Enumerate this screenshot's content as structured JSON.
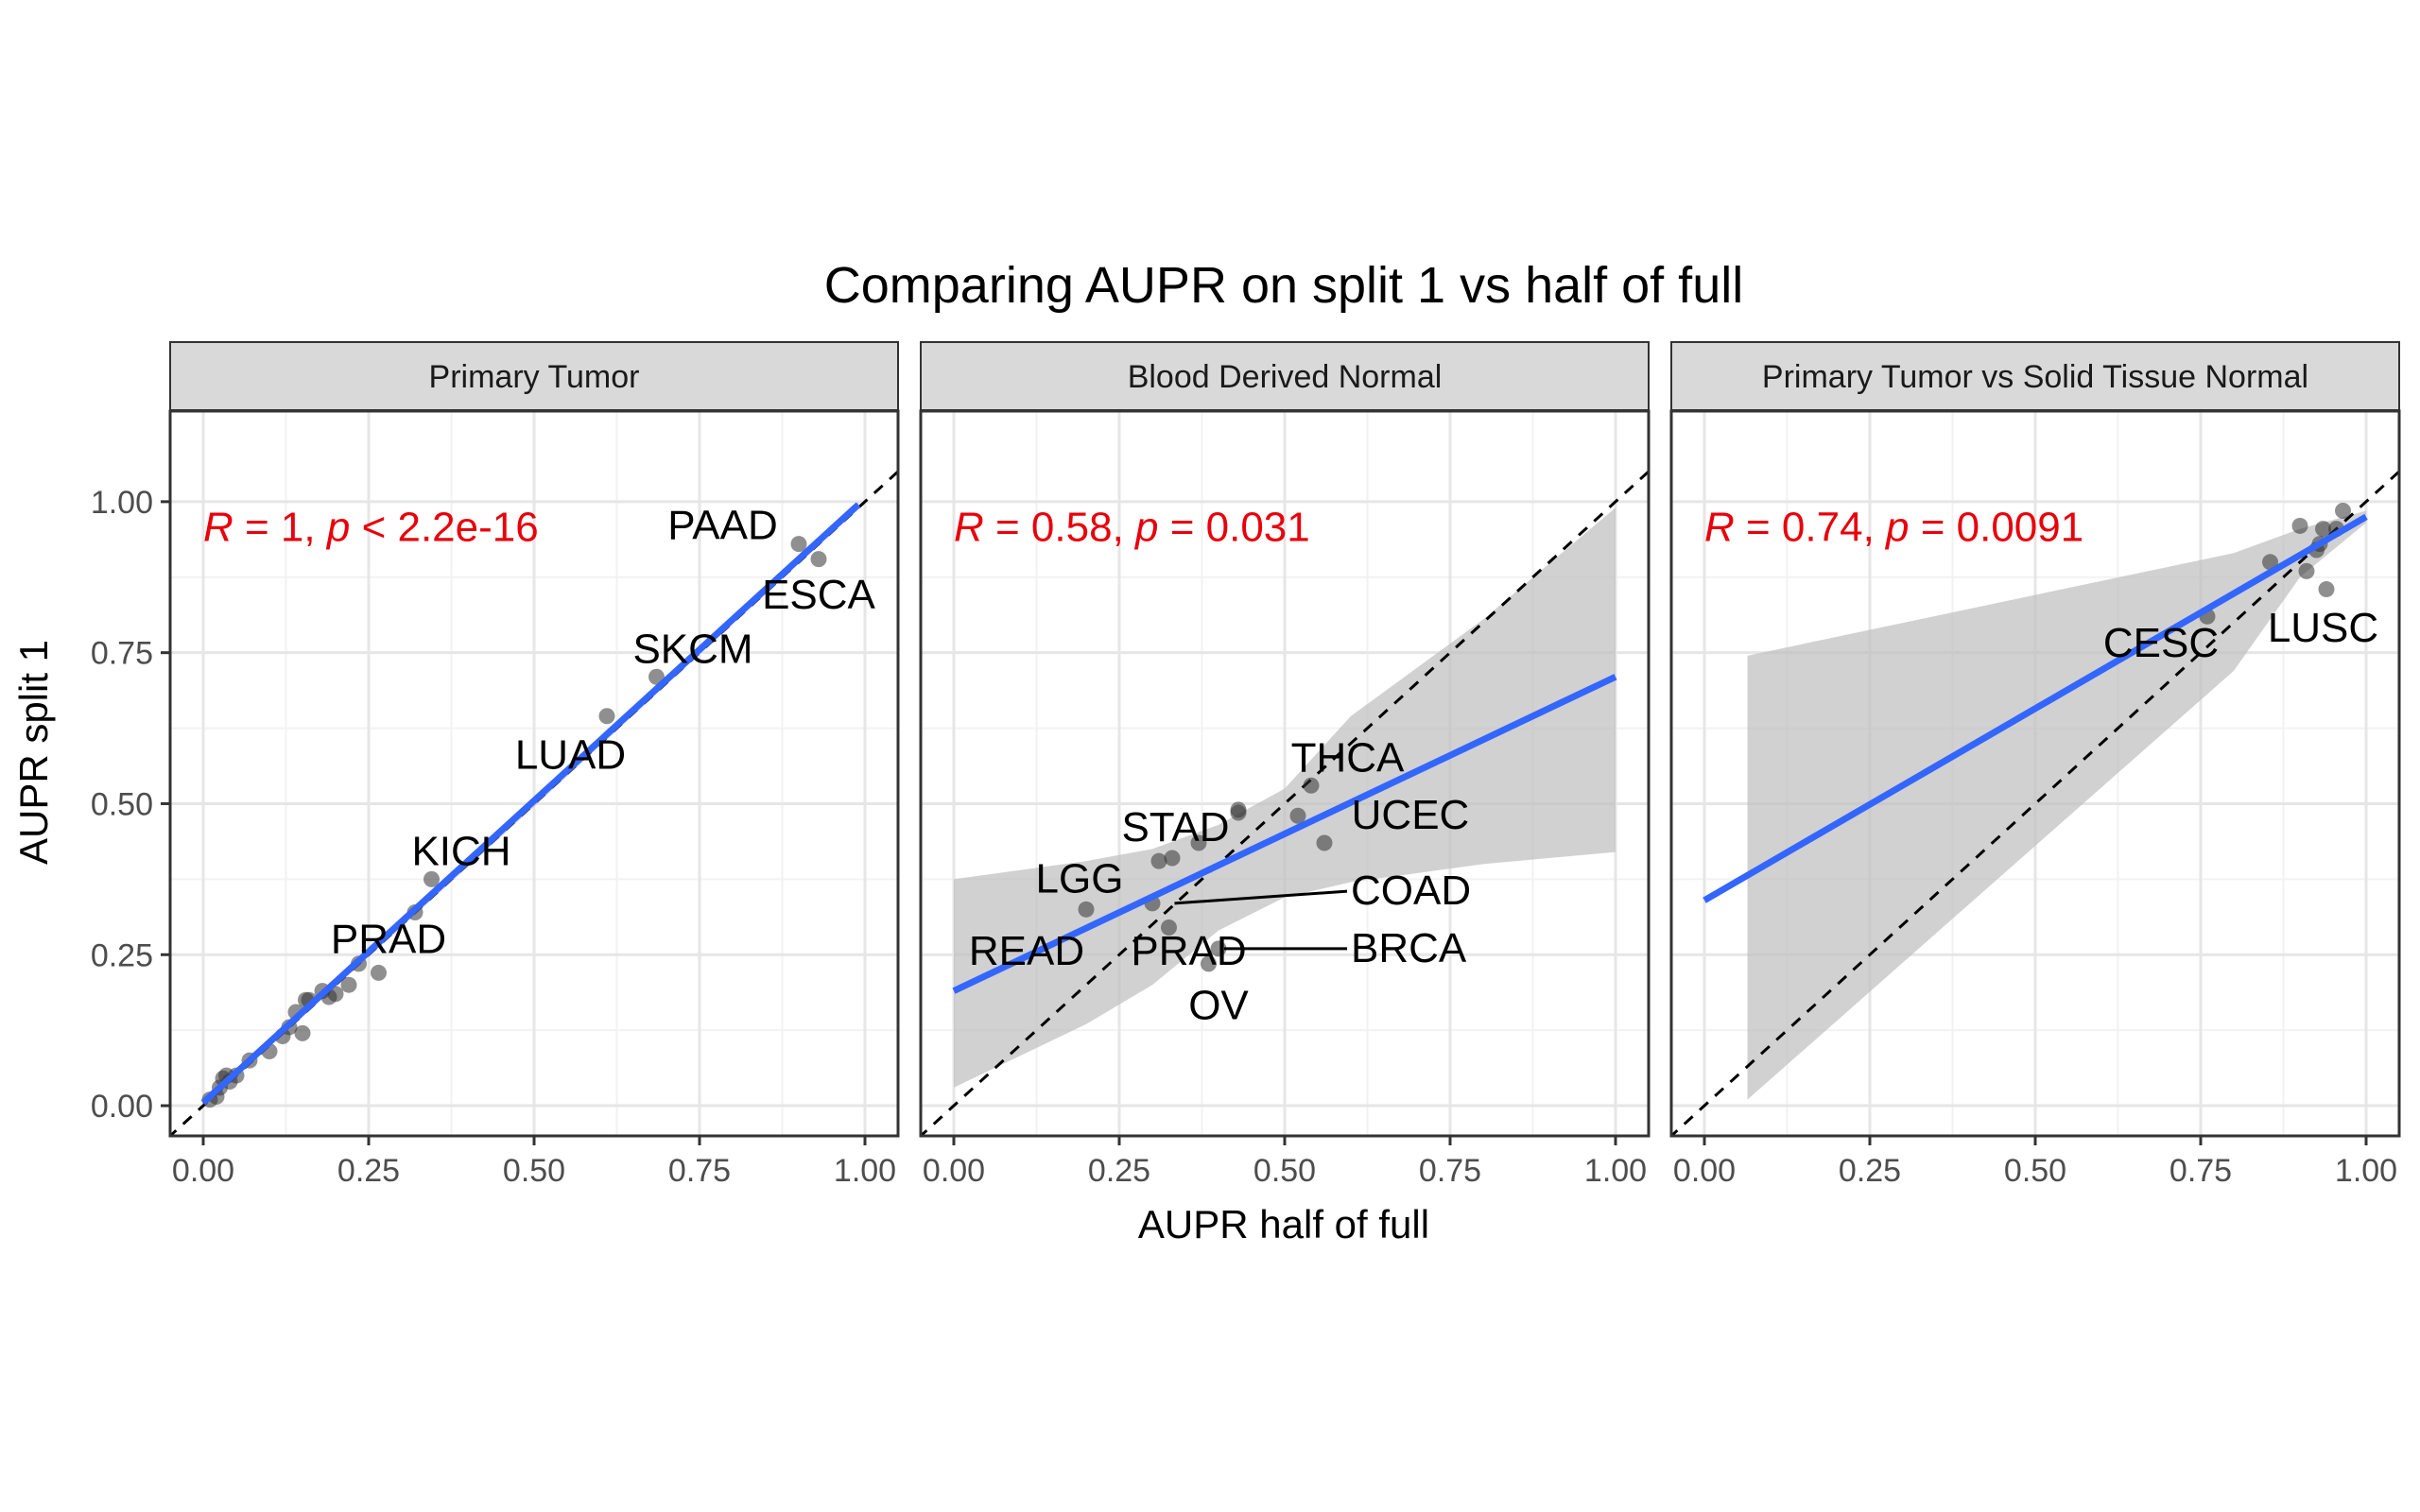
{
  "chart_data": {
    "type": "scatter",
    "title": "Comparing AUPR on split 1 vs half of full",
    "xlabel": "AUPR half of full",
    "ylabel": "AUPR split 1",
    "xlim": [
      -0.05,
      1.05
    ],
    "ylim": [
      -0.05,
      1.15
    ],
    "x_ticks": [
      "0.00",
      "0.25",
      "0.50",
      "0.75",
      "1.00"
    ],
    "y_ticks": [
      "0.00",
      "0.25",
      "0.50",
      "0.75",
      "1.00"
    ],
    "grid": true,
    "colors": {
      "fit_line": "#3366FF",
      "ribbon": "#BEBEBE",
      "point": "#333333",
      "stat_text": "#E8000B",
      "strip_bg": "#D9D9D9",
      "identity_line": "#000000"
    },
    "panels": [
      {
        "strip": "Primary Tumor",
        "stat": {
          "r_label": "R",
          "r_value": "1",
          "p_label": "p",
          "p_value": "< 2.2e-16"
        },
        "fit": {
          "x0": 0.0,
          "y0": 0.005,
          "x1": 0.99,
          "y1": 0.995
        },
        "ribbon_upper": [
          [
            0.0,
            0.012
          ],
          [
            0.5,
            0.505
          ],
          [
            0.99,
            1.0
          ]
        ],
        "ribbon_lower": [
          [
            0.99,
            0.99
          ],
          [
            0.5,
            0.495
          ],
          [
            0.0,
            -0.002
          ]
        ],
        "points": [
          [
            0.01,
            0.01
          ],
          [
            0.02,
            0.015
          ],
          [
            0.025,
            0.03
          ],
          [
            0.03,
            0.045
          ],
          [
            0.035,
            0.05
          ],
          [
            0.04,
            0.04
          ],
          [
            0.05,
            0.05
          ],
          [
            0.07,
            0.075
          ],
          [
            0.1,
            0.09
          ],
          [
            0.12,
            0.115
          ],
          [
            0.13,
            0.13
          ],
          [
            0.14,
            0.155
          ],
          [
            0.15,
            0.12
          ],
          [
            0.155,
            0.175
          ],
          [
            0.16,
            0.175
          ],
          [
            0.18,
            0.19
          ],
          [
            0.19,
            0.18
          ],
          [
            0.2,
            0.185
          ],
          [
            0.22,
            0.2
          ],
          [
            0.235,
            0.235
          ],
          [
            0.265,
            0.22
          ],
          [
            0.32,
            0.32
          ],
          [
            0.345,
            0.375
          ],
          [
            0.61,
            0.645
          ],
          [
            0.685,
            0.71
          ],
          [
            0.9,
            0.93
          ],
          [
            0.93,
            0.905
          ]
        ],
        "labels": [
          {
            "text": "PAAD",
            "x": 0.91,
            "y": 0.93,
            "lx": 0.785,
            "ly": 0.96
          },
          {
            "text": "ESCA",
            "x": 0.93,
            "y": 0.905,
            "lx": 0.93,
            "ly": 0.845
          },
          {
            "text": "SKCM",
            "x": 0.685,
            "y": 0.71,
            "lx": 0.74,
            "ly": 0.755
          },
          {
            "text": "LUAD",
            "x": 0.61,
            "y": 0.645,
            "lx": 0.555,
            "ly": 0.58
          },
          {
            "text": "KICH",
            "x": 0.345,
            "y": 0.375,
            "lx": 0.39,
            "ly": 0.42
          },
          {
            "text": "PRAD",
            "x": 0.265,
            "y": 0.22,
            "lx": 0.28,
            "ly": 0.275
          }
        ]
      },
      {
        "strip": "Blood Derived Normal",
        "stat": {
          "r_label": "R",
          "r_value": "0.58",
          "p_label": "p",
          "p_value": "= 0.031"
        },
        "fit": {
          "x0": 0.0,
          "y0": 0.19,
          "x1": 1.0,
          "y1": 0.71
        },
        "ribbon_upper": [
          [
            0.0,
            0.375
          ],
          [
            0.2,
            0.405
          ],
          [
            0.3,
            0.425
          ],
          [
            0.4,
            0.465
          ],
          [
            0.5,
            0.525
          ],
          [
            0.6,
            0.645
          ],
          [
            0.7,
            0.725
          ],
          [
            0.8,
            0.805
          ],
          [
            1.0,
            0.99
          ]
        ],
        "ribbon_lower": [
          [
            1.0,
            0.42
          ],
          [
            0.8,
            0.4
          ],
          [
            0.7,
            0.385
          ],
          [
            0.6,
            0.37
          ],
          [
            0.5,
            0.345
          ],
          [
            0.4,
            0.29
          ],
          [
            0.3,
            0.2
          ],
          [
            0.2,
            0.135
          ],
          [
            0.0,
            0.03
          ]
        ],
        "points": [
          [
            0.2,
            0.325
          ],
          [
            0.3,
            0.335
          ],
          [
            0.31,
            0.405
          ],
          [
            0.33,
            0.41
          ],
          [
            0.325,
            0.295
          ],
          [
            0.37,
            0.435
          ],
          [
            0.385,
            0.235
          ],
          [
            0.4,
            0.26
          ],
          [
            0.43,
            0.49
          ],
          [
            0.43,
            0.485
          ],
          [
            0.52,
            0.48
          ],
          [
            0.54,
            0.53
          ],
          [
            0.56,
            0.435
          ]
        ],
        "labels": [
          {
            "text": "THCA",
            "x": 0.54,
            "y": 0.53,
            "lx": 0.595,
            "ly": 0.575
          },
          {
            "text": "UCEC",
            "x": 0.56,
            "y": 0.435,
            "lx": 0.69,
            "ly": 0.48
          },
          {
            "text": "STAD",
            "x": 0.37,
            "y": 0.435,
            "lx": 0.335,
            "ly": 0.46
          },
          {
            "text": "LGG",
            "x": 0.2,
            "y": 0.325,
            "lx": 0.19,
            "ly": 0.375
          },
          {
            "text": "COAD",
            "x": 0.325,
            "y": 0.335,
            "lx": 0.6,
            "ly": 0.355,
            "leader": true
          },
          {
            "text": "READ",
            "x": 0.2,
            "y": 0.27,
            "lx": 0.11,
            "ly": 0.255
          },
          {
            "text": "PRAD",
            "x": 0.325,
            "y": 0.295,
            "lx": 0.355,
            "ly": 0.255
          },
          {
            "text": "BRCA",
            "x": 0.4,
            "y": 0.26,
            "lx": 0.6,
            "ly": 0.26,
            "leader": true
          },
          {
            "text": "OV",
            "x": 0.385,
            "y": 0.235,
            "lx": 0.4,
            "ly": 0.165
          }
        ]
      },
      {
        "strip": "Primary Tumor vs Solid Tissue Normal",
        "stat": {
          "r_label": "R",
          "r_value": "0.74",
          "p_label": "p",
          "p_value": "= 0.0091"
        },
        "fit": {
          "x0": 0.0,
          "y0": 0.34,
          "x1": 1.0,
          "y1": 0.975
        },
        "ribbon_upper": [
          [
            0.065,
            0.745
          ],
          [
            0.8,
            0.915
          ],
          [
            0.9,
            0.955
          ],
          [
            1.0,
            0.985
          ]
        ],
        "ribbon_lower": [
          [
            1.0,
            0.965
          ],
          [
            0.9,
            0.875
          ],
          [
            0.8,
            0.72
          ],
          [
            0.065,
            0.01
          ]
        ],
        "points": [
          [
            0.76,
            0.81
          ],
          [
            0.855,
            0.9
          ],
          [
            0.9,
            0.96
          ],
          [
            0.91,
            0.885
          ],
          [
            0.925,
            0.92
          ],
          [
            0.93,
            0.93
          ],
          [
            0.935,
            0.955
          ],
          [
            0.94,
            0.855
          ],
          [
            0.955,
            0.955
          ],
          [
            0.965,
            0.985
          ]
        ],
        "labels": [
          {
            "text": "CESC",
            "x": 0.76,
            "y": 0.81,
            "lx": 0.69,
            "ly": 0.765
          },
          {
            "text": "LUSC",
            "x": 0.94,
            "y": 0.855,
            "lx": 0.935,
            "ly": 0.79
          }
        ]
      }
    ]
  }
}
